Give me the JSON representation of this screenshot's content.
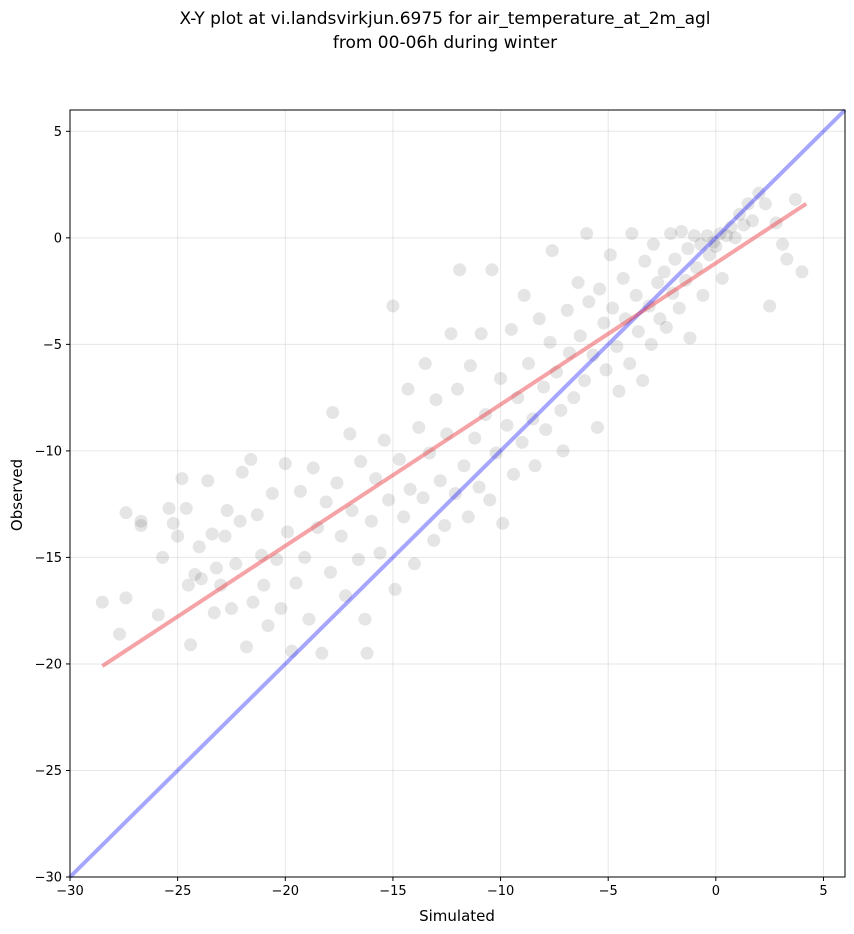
{
  "chart_data": {
    "type": "scatter",
    "title": "X-Y plot at vi.landsvirkjun.6975 for air_temperature_at_2m_agl",
    "subtitle": "from 00-06h during winter",
    "xlabel": "Simulated",
    "ylabel": "Observed",
    "xlim": [
      -30,
      6
    ],
    "ylim": [
      -30,
      6
    ],
    "xticks": [
      -30,
      -25,
      -20,
      -15,
      -10,
      -5,
      0,
      5
    ],
    "yticks": [
      -30,
      -25,
      -20,
      -15,
      -10,
      -5,
      0,
      5
    ],
    "xtick_labels": [
      "−30",
      "−25",
      "−20",
      "−15",
      "−10",
      "−5",
      "0",
      "5"
    ],
    "ytick_labels": [
      "−30",
      "−25",
      "−20",
      "−15",
      "−10",
      "−5",
      "0",
      "5"
    ],
    "grid": true,
    "point_color": "#000000",
    "identity_line": {
      "x": [
        -30,
        6
      ],
      "y": [
        -30,
        6
      ],
      "color": "#0000ff"
    },
    "fit_line": {
      "x": [
        -28.5,
        4.2
      ],
      "y": [
        -20.1,
        1.6
      ],
      "color": "#e8333a"
    },
    "points": [
      [
        -28.5,
        -17.1
      ],
      [
        -27.7,
        -18.6
      ],
      [
        -27.4,
        -16.9
      ],
      [
        -27.4,
        -12.9
      ],
      [
        -26.7,
        -13.3
      ],
      [
        -26.7,
        -13.5
      ],
      [
        -25.9,
        -17.7
      ],
      [
        -25.7,
        -15.0
      ],
      [
        -25.4,
        -12.7
      ],
      [
        -25.2,
        -13.4
      ],
      [
        -25.0,
        -14.0
      ],
      [
        -24.8,
        -11.3
      ],
      [
        -24.6,
        -12.7
      ],
      [
        -24.5,
        -16.3
      ],
      [
        -24.4,
        -19.1
      ],
      [
        -24.2,
        -15.8
      ],
      [
        -24.0,
        -14.5
      ],
      [
        -23.9,
        -16.0
      ],
      [
        -23.6,
        -11.4
      ],
      [
        -23.4,
        -13.9
      ],
      [
        -23.3,
        -17.6
      ],
      [
        -23.2,
        -15.5
      ],
      [
        -23.0,
        -16.3
      ],
      [
        -22.8,
        -14.0
      ],
      [
        -22.7,
        -12.8
      ],
      [
        -22.5,
        -17.4
      ],
      [
        -22.3,
        -15.3
      ],
      [
        -22.1,
        -13.3
      ],
      [
        -22.0,
        -11.0
      ],
      [
        -21.8,
        -19.2
      ],
      [
        -21.6,
        -10.4
      ],
      [
        -21.5,
        -17.1
      ],
      [
        -21.3,
        -13.0
      ],
      [
        -21.1,
        -14.9
      ],
      [
        -21.0,
        -16.3
      ],
      [
        -20.8,
        -18.2
      ],
      [
        -20.6,
        -12.0
      ],
      [
        -20.4,
        -15.1
      ],
      [
        -20.2,
        -17.4
      ],
      [
        -20.0,
        -10.6
      ],
      [
        -19.9,
        -13.8
      ],
      [
        -19.7,
        -19.4
      ],
      [
        -19.5,
        -16.2
      ],
      [
        -19.3,
        -11.9
      ],
      [
        -19.1,
        -15.0
      ],
      [
        -18.9,
        -17.9
      ],
      [
        -18.7,
        -10.8
      ],
      [
        -18.5,
        -13.6
      ],
      [
        -18.3,
        -19.5
      ],
      [
        -18.1,
        -12.4
      ],
      [
        -17.9,
        -15.7
      ],
      [
        -17.8,
        -8.2
      ],
      [
        -17.6,
        -11.5
      ],
      [
        -17.4,
        -14.0
      ],
      [
        -17.2,
        -16.8
      ],
      [
        -17.0,
        -9.2
      ],
      [
        -16.9,
        -12.8
      ],
      [
        -16.6,
        -15.1
      ],
      [
        -16.5,
        -10.5
      ],
      [
        -16.3,
        -17.9
      ],
      [
        -16.2,
        -19.5
      ],
      [
        -16.0,
        -13.3
      ],
      [
        -15.8,
        -11.3
      ],
      [
        -15.6,
        -14.8
      ],
      [
        -15.4,
        -9.5
      ],
      [
        -15.2,
        -12.3
      ],
      [
        -15.0,
        -3.2
      ],
      [
        -14.9,
        -16.5
      ],
      [
        -14.7,
        -10.4
      ],
      [
        -14.5,
        -13.1
      ],
      [
        -14.3,
        -7.1
      ],
      [
        -14.2,
        -11.8
      ],
      [
        -14.0,
        -15.3
      ],
      [
        -13.8,
        -8.9
      ],
      [
        -13.6,
        -12.2
      ],
      [
        -13.5,
        -5.9
      ],
      [
        -13.3,
        -10.1
      ],
      [
        -13.1,
        -14.2
      ],
      [
        -13.0,
        -7.6
      ],
      [
        -12.8,
        -11.4
      ],
      [
        -12.6,
        -13.5
      ],
      [
        -12.5,
        -9.2
      ],
      [
        -12.3,
        -4.5
      ],
      [
        -12.1,
        -12.0
      ],
      [
        -12.0,
        -7.1
      ],
      [
        -11.9,
        -1.5
      ],
      [
        -11.7,
        -10.7
      ],
      [
        -11.5,
        -13.1
      ],
      [
        -11.4,
        -6.0
      ],
      [
        -11.2,
        -9.4
      ],
      [
        -11.0,
        -11.7
      ],
      [
        -10.9,
        -4.5
      ],
      [
        -10.7,
        -8.3
      ],
      [
        -10.5,
        -12.3
      ],
      [
        -10.4,
        -1.5
      ],
      [
        -10.2,
        -10.1
      ],
      [
        -10.0,
        -6.6
      ],
      [
        -9.9,
        -13.4
      ],
      [
        -9.7,
        -8.8
      ],
      [
        -9.5,
        -4.3
      ],
      [
        -9.4,
        -11.1
      ],
      [
        -9.2,
        -7.5
      ],
      [
        -9.0,
        -9.6
      ],
      [
        -8.9,
        -2.7
      ],
      [
        -8.7,
        -5.9
      ],
      [
        -8.5,
        -8.5
      ],
      [
        -8.4,
        -10.7
      ],
      [
        -8.2,
        -3.8
      ],
      [
        -8.0,
        -7.0
      ],
      [
        -7.9,
        -9.0
      ],
      [
        -7.7,
        -4.9
      ],
      [
        -7.6,
        -0.6
      ],
      [
        -7.4,
        -6.3
      ],
      [
        -7.2,
        -8.1
      ],
      [
        -7.1,
        -10.0
      ],
      [
        -6.9,
        -3.4
      ],
      [
        -6.8,
        -5.4
      ],
      [
        -6.6,
        -7.5
      ],
      [
        -6.4,
        -2.1
      ],
      [
        -6.3,
        -4.6
      ],
      [
        -6.1,
        -6.7
      ],
      [
        -6.0,
        0.2
      ],
      [
        -5.9,
        -3.0
      ],
      [
        -5.7,
        -5.5
      ],
      [
        -5.5,
        -8.9
      ],
      [
        -5.4,
        -2.4
      ],
      [
        -5.2,
        -4.0
      ],
      [
        -5.1,
        -6.2
      ],
      [
        -4.9,
        -0.8
      ],
      [
        -4.8,
        -3.3
      ],
      [
        -4.6,
        -5.1
      ],
      [
        -4.5,
        -7.2
      ],
      [
        -4.3,
        -1.9
      ],
      [
        -4.2,
        -3.8
      ],
      [
        -4.0,
        -5.9
      ],
      [
        -3.9,
        0.2
      ],
      [
        -3.7,
        -2.7
      ],
      [
        -3.6,
        -4.4
      ],
      [
        -3.4,
        -6.7
      ],
      [
        -3.3,
        -1.1
      ],
      [
        -3.1,
        -3.2
      ],
      [
        -3.0,
        -5.0
      ],
      [
        -2.9,
        -0.3
      ],
      [
        -2.7,
        -2.1
      ],
      [
        -2.6,
        -3.8
      ],
      [
        -2.4,
        -1.6
      ],
      [
        -2.3,
        -4.2
      ],
      [
        -2.1,
        0.2
      ],
      [
        -2.0,
        -2.6
      ],
      [
        -1.9,
        -1.0
      ],
      [
        -1.7,
        -3.3
      ],
      [
        -1.6,
        0.3
      ],
      [
        -1.4,
        -2.0
      ],
      [
        -1.3,
        -0.5
      ],
      [
        -1.2,
        -4.7
      ],
      [
        -1.0,
        0.1
      ],
      [
        -0.9,
        -1.4
      ],
      [
        -0.7,
        -0.3
      ],
      [
        -0.6,
        -2.7
      ],
      [
        -0.4,
        0.1
      ],
      [
        -0.3,
        -0.8
      ],
      [
        -0.1,
        -0.2
      ],
      [
        0.0,
        -0.4
      ],
      [
        0.2,
        0.2
      ],
      [
        0.3,
        -1.9
      ],
      [
        0.5,
        0.1
      ],
      [
        0.7,
        0.5
      ],
      [
        0.9,
        0.0
      ],
      [
        1.1,
        1.1
      ],
      [
        1.3,
        0.6
      ],
      [
        1.5,
        1.6
      ],
      [
        1.7,
        0.8
      ],
      [
        2.0,
        2.1
      ],
      [
        2.3,
        1.6
      ],
      [
        2.5,
        -3.2
      ],
      [
        2.8,
        0.7
      ],
      [
        3.1,
        -0.3
      ],
      [
        3.3,
        -1.0
      ],
      [
        3.7,
        1.8
      ],
      [
        4.0,
        -1.6
      ]
    ]
  }
}
